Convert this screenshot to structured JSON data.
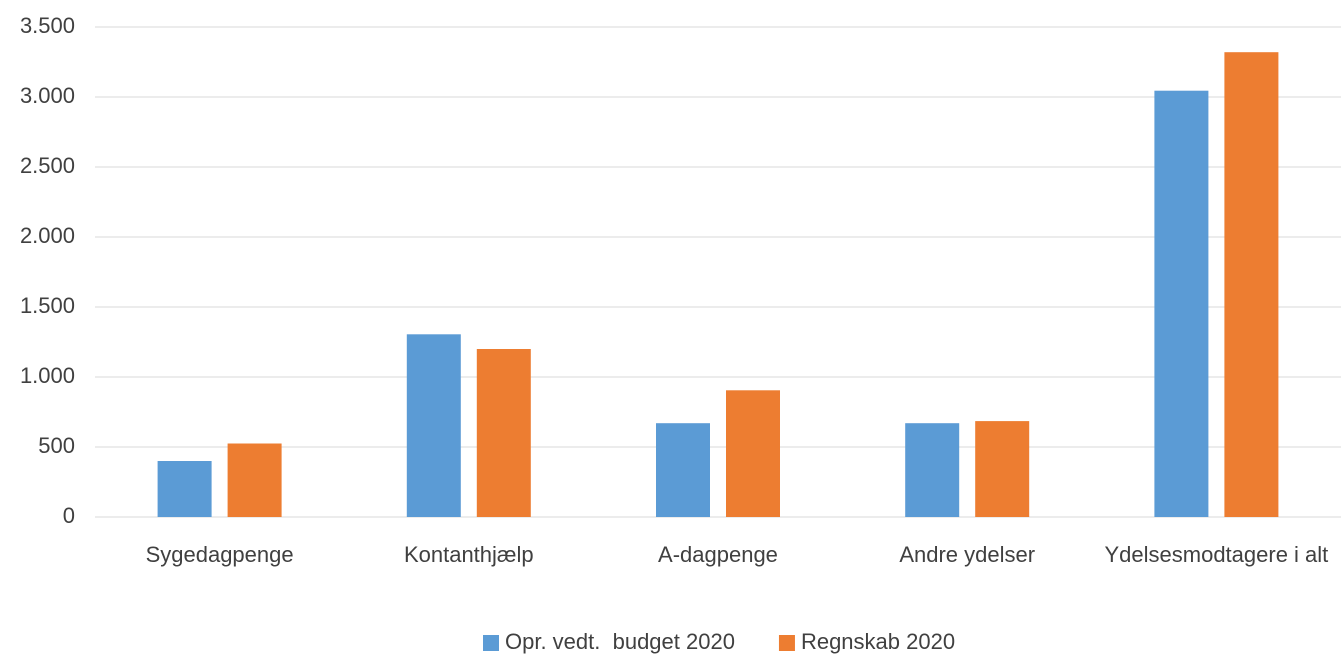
{
  "chart_data": {
    "type": "bar",
    "categories": [
      "Sygedagpenge",
      "Kontanthjælp",
      "A-dagpenge",
      "Andre ydelser",
      "Ydelsesmodtagere i alt"
    ],
    "series": [
      {
        "name": "Opr. vedt.  budget 2020",
        "color": "#5b9bd5",
        "values": [
          400,
          1305,
          670,
          670,
          3045
        ]
      },
      {
        "name": "Regnskab 2020",
        "color": "#ed7d31",
        "values": [
          525,
          1200,
          905,
          685,
          3320
        ]
      }
    ],
    "ylim": [
      0,
      3500
    ],
    "yticks": [
      0,
      500,
      {
        "value": 1000,
        "label": "1.000"
      },
      {
        "value": 1500,
        "label": "1.500"
      },
      {
        "value": 2000,
        "label": "2.000"
      },
      {
        "value": 2500,
        "label": "2.500"
      },
      {
        "value": 3000,
        "label": "3.000"
      },
      {
        "value": 3500,
        "label": "3.500"
      }
    ],
    "grid": true,
    "legend": "bottom"
  }
}
